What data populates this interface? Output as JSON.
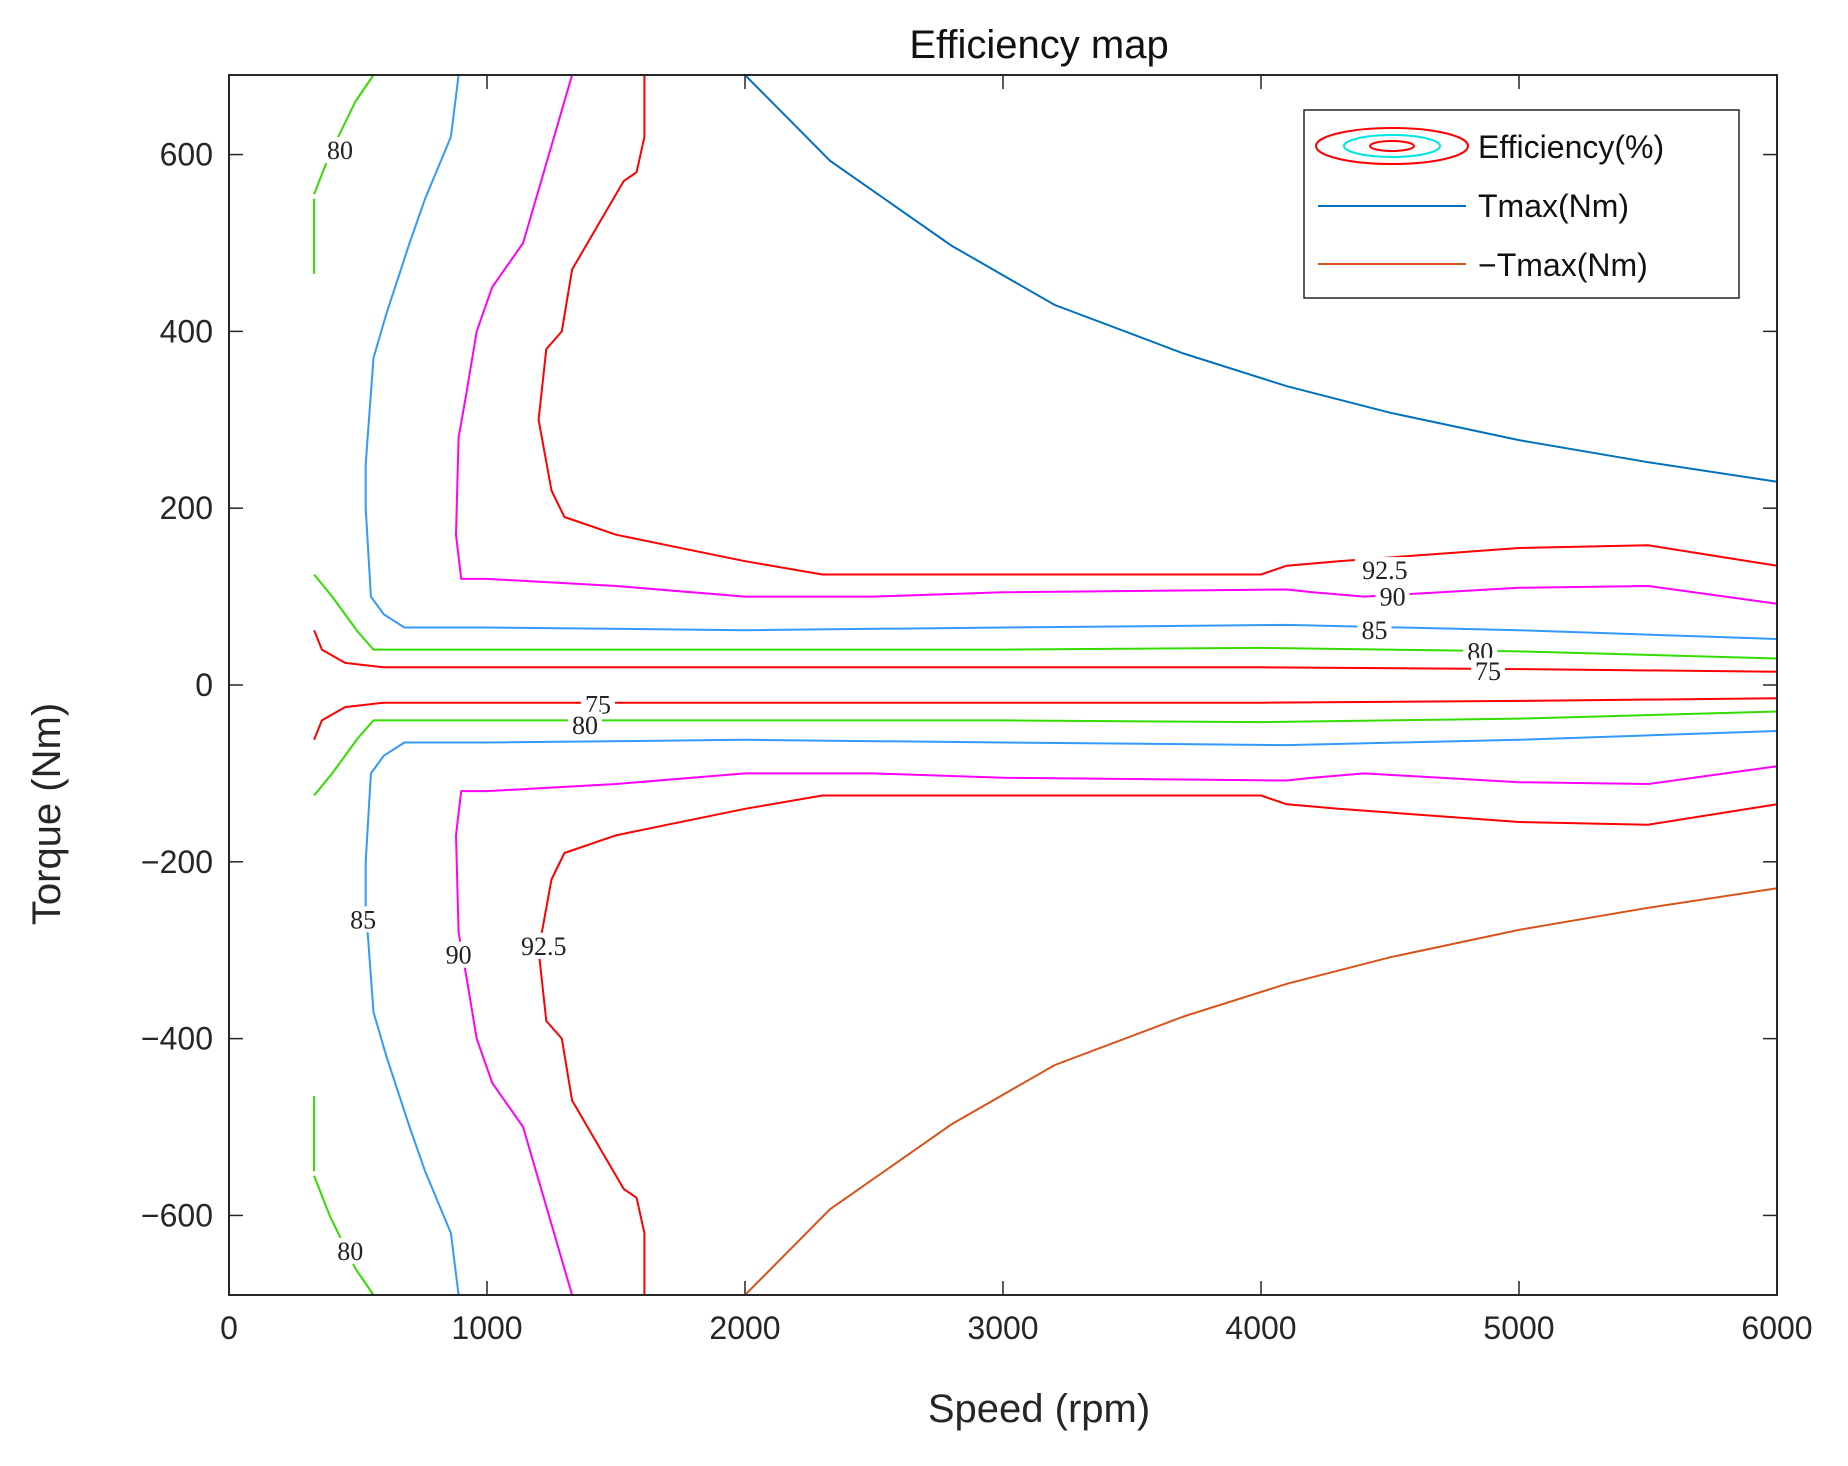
{
  "chart_data": {
    "type": "contour",
    "title": "Efficiency map",
    "xlabel": "Speed (rpm)",
    "ylabel": "Torque (Nm)",
    "xlim": [
      0,
      6000
    ],
    "ylim": [
      -690,
      690
    ],
    "xticks": [
      0,
      1000,
      2000,
      3000,
      4000,
      5000,
      6000
    ],
    "yticks": [
      -600,
      -400,
      -200,
      0,
      200,
      400,
      600
    ],
    "xtick_labels": [
      "0",
      "1000",
      "2000",
      "3000",
      "4000",
      "5000",
      "6000"
    ],
    "ytick_labels": [
      "−600",
      "−400",
      "−200",
      "0",
      "200",
      "400",
      "600"
    ],
    "legend": {
      "position": "top-right",
      "entries": [
        {
          "label": "Efficiency(%)",
          "kind": "contour"
        },
        {
          "label": "Tmax(Nm)",
          "color": "#0072BD"
        },
        {
          "label": "−Tmax(Nm)",
          "color": "#D95319"
        }
      ]
    },
    "series": [
      {
        "name": "Tmax(Nm)",
        "color": "#0072BD",
        "x": [
          0,
          2000,
          2330,
          2800,
          3200,
          3700,
          4100,
          4500,
          5000,
          5500,
          6000
        ],
        "y": [
          690,
          690,
          593,
          497,
          430,
          375,
          338,
          308,
          277,
          252,
          230
        ]
      },
      {
        "name": "−Tmax(Nm)",
        "color": "#D95319",
        "x": [
          0,
          2000,
          2330,
          2800,
          3200,
          3700,
          4100,
          4500,
          5000,
          5500,
          6000
        ],
        "y": [
          -690,
          -690,
          -593,
          -497,
          -430,
          -375,
          -338,
          -308,
          -277,
          -252,
          -230
        ]
      }
    ],
    "contours": [
      {
        "level": "75",
        "color": "#FF0000",
        "segments": [
          {
            "x": [
              330,
              360,
              450,
              600,
              1000,
              2000,
              3000,
              4000,
              5000,
              6000
            ],
            "y": [
              62,
              40,
              25,
              20,
              20,
              20,
              20,
              20,
              18,
              15
            ]
          },
          {
            "x": [
              330,
              360,
              450,
              600,
              1000,
              2000,
              3000,
              4000,
              5000,
              6000
            ],
            "y": [
              -62,
              -40,
              -25,
              -20,
              -20,
              -20,
              -20,
              -20,
              -18,
              -15
            ]
          }
        ]
      },
      {
        "level": "80",
        "color": "#33DD00",
        "segments": [
          {
            "x": [
              330,
              400,
              500,
              560,
              1000,
              2000,
              3000,
              4000,
              5000,
              6000
            ],
            "y": [
              125,
              100,
              60,
              40,
              40,
              40,
              40,
              42,
              38,
              30
            ]
          },
          {
            "x": [
              330,
              400,
              500,
              560,
              1000,
              2000,
              3000,
              4000,
              5000,
              6000
            ],
            "y": [
              -125,
              -100,
              -60,
              -40,
              -40,
              -40,
              -40,
              -42,
              -38,
              -30
            ]
          },
          {
            "x": [
              330,
              330
            ],
            "y": [
              465,
              550
            ]
          },
          {
            "x": [
              330,
              390,
              490,
              560
            ],
            "y": [
              555,
              600,
              660,
              690
            ]
          },
          {
            "x": [
              330,
              330
            ],
            "y": [
              -465,
              -550
            ]
          },
          {
            "x": [
              330,
              390,
              490,
              560
            ],
            "y": [
              -555,
              -600,
              -660,
              -690
            ]
          }
        ]
      },
      {
        "level": "85",
        "color": "#3399FF",
        "segments": [
          {
            "x": [
              890,
              860,
              760,
              700,
              610,
              560,
              530,
              530,
              550,
              600,
              680,
              1000,
              2000,
              3000,
              4100,
              5000,
              6000
            ],
            "y": [
              690,
              620,
              550,
              500,
              420,
              370,
              250,
              200,
              100,
              80,
              65,
              65,
              62,
              65,
              68,
              62,
              52
            ]
          },
          {
            "x": [
              890,
              860,
              760,
              700,
              610,
              560,
              530,
              530,
              550,
              600,
              680,
              1000,
              2000,
              3000,
              4100,
              5000,
              6000
            ],
            "y": [
              -690,
              -620,
              -550,
              -500,
              -420,
              -370,
              -250,
              -200,
              -100,
              -80,
              -65,
              -65,
              -62,
              -65,
              -68,
              -62,
              -52
            ]
          }
        ]
      },
      {
        "level": "90",
        "color": "#FF00FF",
        "segments": [
          {
            "x": [
              1330,
              1240,
              1140,
              1020,
              960,
              920,
              890,
              880,
              900,
              1000,
              1500,
              2000,
              2500,
              3000,
              4100,
              4200,
              4400,
              5000,
              5500,
              6000
            ],
            "y": [
              690,
              600,
              500,
              450,
              400,
              330,
              280,
              170,
              120,
              120,
              112,
              100,
              100,
              105,
              108,
              105,
              100,
              110,
              112,
              92
            ]
          },
          {
            "x": [
              1330,
              1240,
              1140,
              1020,
              960,
              920,
              890,
              880,
              900,
              1000,
              1500,
              2000,
              2500,
              3000,
              4100,
              4200,
              4400,
              5000,
              5500,
              6000
            ],
            "y": [
              -690,
              -600,
              -500,
              -450,
              -400,
              -330,
              -280,
              -170,
              -120,
              -120,
              -112,
              -100,
              -100,
              -105,
              -108,
              -105,
              -100,
              -110,
              -112,
              -92
            ]
          }
        ]
      },
      {
        "level": "92.5",
        "color": "#FF0000",
        "segments": [
          {
            "x": [
              1610,
              1610,
              1580,
              1530,
              1430,
              1330,
              1290,
              1230,
              1200,
              1250,
              1300,
              1500,
              2000,
              2300,
              3000,
              4000,
              4100,
              4300,
              5000,
              5500,
              6000
            ],
            "y": [
              690,
              620,
              580,
              570,
              520,
              470,
              400,
              380,
              300,
              220,
              190,
              170,
              140,
              125,
              125,
              125,
              135,
              140,
              155,
              158,
              135
            ]
          },
          {
            "x": [
              1610,
              1610,
              1580,
              1530,
              1430,
              1330,
              1290,
              1230,
              1200,
              1250,
              1300,
              1500,
              2000,
              2300,
              3000,
              4000,
              4100,
              4300,
              5000,
              5500,
              6000
            ],
            "y": [
              -690,
              -620,
              -580,
              -570,
              -520,
              -470,
              -400,
              -380,
              -300,
              -220,
              -190,
              -170,
              -140,
              -125,
              -125,
              -125,
              -135,
              -140,
              -155,
              -158,
              -135
            ]
          }
        ]
      }
    ],
    "contour_labels": [
      {
        "text": "92.5",
        "x": 4480,
        "y": 130
      },
      {
        "text": "90",
        "x": 4510,
        "y": 100
      },
      {
        "text": "85",
        "x": 4440,
        "y": 62
      },
      {
        "text": "80",
        "x": 4850,
        "y": 38
      },
      {
        "text": "75",
        "x": 4880,
        "y": 16
      },
      {
        "text": "75",
        "x": 1430,
        "y": -22
      },
      {
        "text": "80",
        "x": 1380,
        "y": -45
      },
      {
        "text": "80",
        "x": 430,
        "y": 605
      },
      {
        "text": "80",
        "x": 470,
        "y": -640
      },
      {
        "text": "85",
        "x": 520,
        "y": -265
      },
      {
        "text": "90",
        "x": 890,
        "y": -305
      },
      {
        "text": "92.5",
        "x": 1220,
        "y": -295
      }
    ]
  }
}
